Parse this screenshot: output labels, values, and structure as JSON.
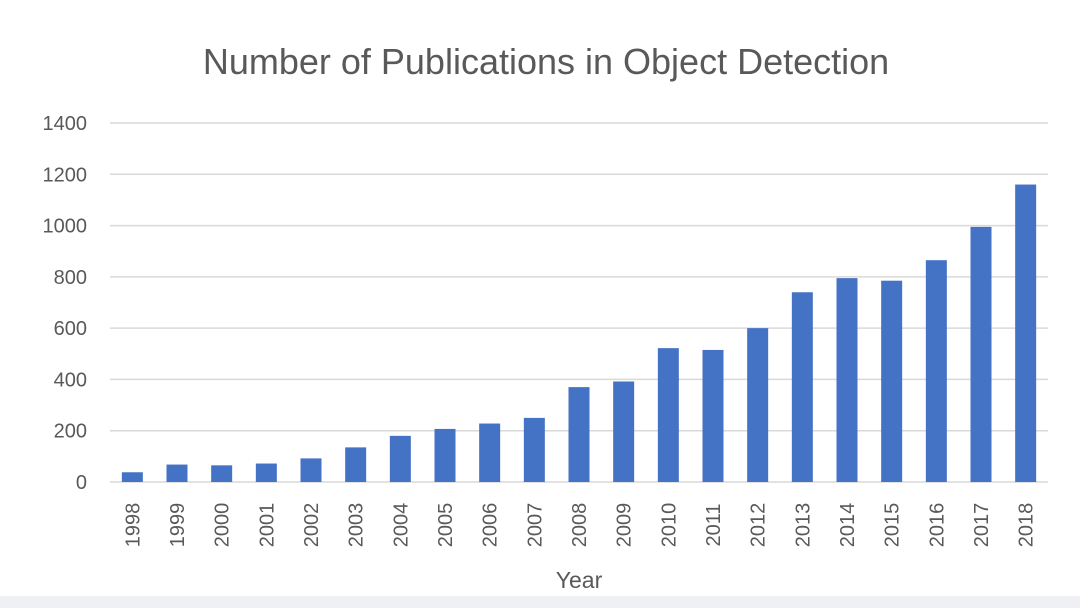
{
  "chart_data": {
    "type": "bar",
    "title": "Number of Publications in Object Detection",
    "xlabel": "Year",
    "ylabel": "",
    "categories": [
      "1998",
      "1999",
      "2000",
      "2001",
      "2002",
      "2003",
      "2004",
      "2005",
      "2006",
      "2007",
      "2008",
      "2009",
      "2010",
      "2011",
      "2012",
      "2013",
      "2014",
      "2015",
      "2016",
      "2017",
      "2018"
    ],
    "values": [
      38,
      68,
      65,
      72,
      92,
      135,
      180,
      207,
      228,
      250,
      370,
      392,
      522,
      515,
      600,
      740,
      795,
      785,
      865,
      995,
      1160
    ],
    "ylim": [
      0,
      1400
    ],
    "yticks": [
      0,
      200,
      400,
      600,
      800,
      1000,
      1200,
      1400
    ],
    "grid": true,
    "legend": "none",
    "bar_color": "#4472c4"
  }
}
